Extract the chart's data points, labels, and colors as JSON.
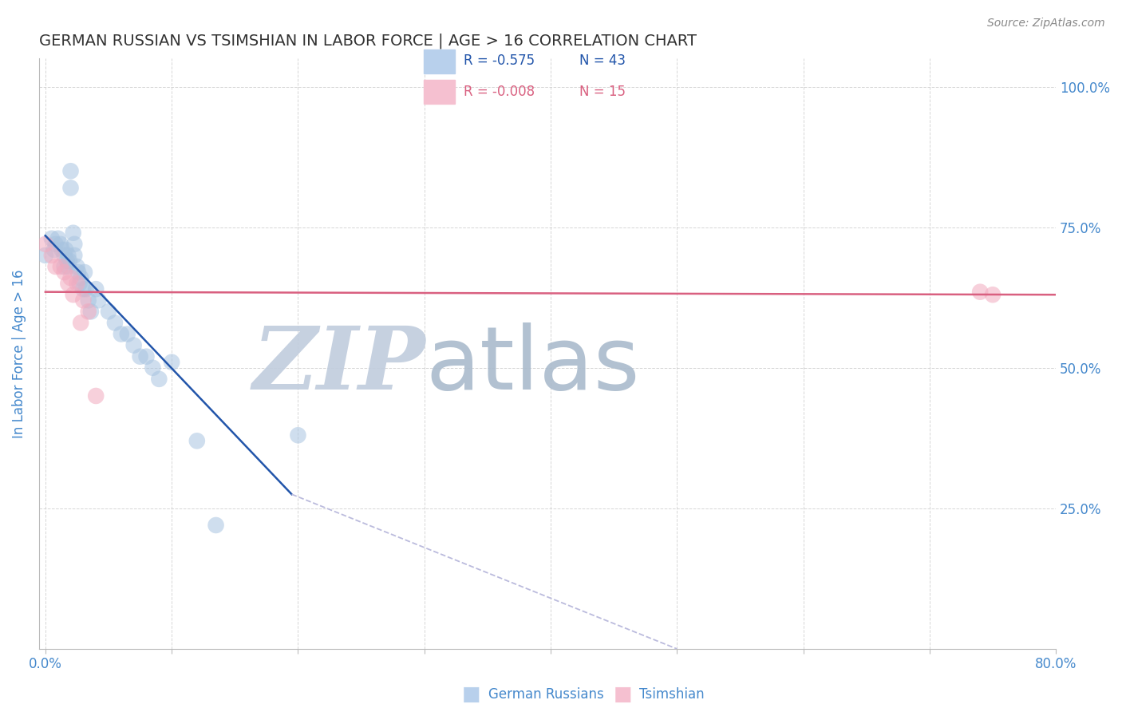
{
  "title": "GERMAN RUSSIAN VS TSIMSHIAN IN LABOR FORCE | AGE > 16 CORRELATION CHART",
  "source_text": "Source: ZipAtlas.com",
  "ylabel": "In Labor Force | Age > 16",
  "xlim": [
    -0.005,
    0.8
  ],
  "ylim": [
    0.0,
    1.05
  ],
  "yticks_right": [
    0.25,
    0.5,
    0.75,
    1.0
  ],
  "ytick_right_labels": [
    "25.0%",
    "50.0%",
    "75.0%",
    "100.0%"
  ],
  "blue_color": "#A8C4E0",
  "pink_color": "#F2AABF",
  "blue_line_color": "#2255AA",
  "pink_line_color": "#D96080",
  "dashed_line_color": "#BBBBDD",
  "background_color": "#FFFFFF",
  "grid_color": "#CCCCCC",
  "legend_R_blue": "R = -0.575",
  "legend_N_blue": "N = 43",
  "legend_R_pink": "R = -0.008",
  "legend_N_pink": "N = 15",
  "watermark_zip": "ZIP",
  "watermark_atlas": "atlas",
  "watermark_color_zip": "#C0CCDD",
  "watermark_color_atlas": "#AABBCC",
  "title_color": "#333333",
  "axis_label_color": "#4488CC",
  "tick_color": "#4488CC",
  "legend_blue_fill": "#B8D0EC",
  "legend_pink_fill": "#F5C0D0",
  "blue_scatter_x": [
    0.0,
    0.005,
    0.007,
    0.008,
    0.01,
    0.012,
    0.013,
    0.015,
    0.015,
    0.016,
    0.017,
    0.018,
    0.018,
    0.019,
    0.02,
    0.02,
    0.022,
    0.023,
    0.023,
    0.025,
    0.026,
    0.027,
    0.028,
    0.03,
    0.031,
    0.032,
    0.034,
    0.036,
    0.04,
    0.042,
    0.05,
    0.055,
    0.06,
    0.065,
    0.07,
    0.075,
    0.08,
    0.085,
    0.09,
    0.1,
    0.12,
    0.135,
    0.2
  ],
  "blue_scatter_y": [
    0.7,
    0.73,
    0.71,
    0.72,
    0.73,
    0.72,
    0.71,
    0.7,
    0.68,
    0.71,
    0.69,
    0.7,
    0.68,
    0.69,
    0.85,
    0.82,
    0.74,
    0.72,
    0.7,
    0.68,
    0.67,
    0.65,
    0.66,
    0.64,
    0.67,
    0.64,
    0.62,
    0.6,
    0.64,
    0.62,
    0.6,
    0.58,
    0.56,
    0.56,
    0.54,
    0.52,
    0.52,
    0.5,
    0.48,
    0.51,
    0.37,
    0.22,
    0.38
  ],
  "pink_scatter_x": [
    0.0,
    0.005,
    0.008,
    0.012,
    0.015,
    0.018,
    0.02,
    0.022,
    0.025,
    0.028,
    0.03,
    0.034,
    0.04,
    0.74,
    0.75
  ],
  "pink_scatter_y": [
    0.72,
    0.7,
    0.68,
    0.68,
    0.67,
    0.65,
    0.66,
    0.63,
    0.65,
    0.58,
    0.62,
    0.6,
    0.45,
    0.635,
    0.63
  ],
  "blue_line_x0": 0.0,
  "blue_line_x1": 0.195,
  "blue_line_y0": 0.735,
  "blue_line_y1": 0.275,
  "dashed_line_x0": 0.195,
  "dashed_line_x1": 0.5,
  "dashed_line_y0": 0.275,
  "dashed_line_y1": 0.0,
  "pink_line_x0": 0.0,
  "pink_line_x1": 0.8,
  "pink_line_y0": 0.635,
  "pink_line_y1": 0.63,
  "figsize": [
    14.06,
    8.92
  ],
  "dpi": 100
}
